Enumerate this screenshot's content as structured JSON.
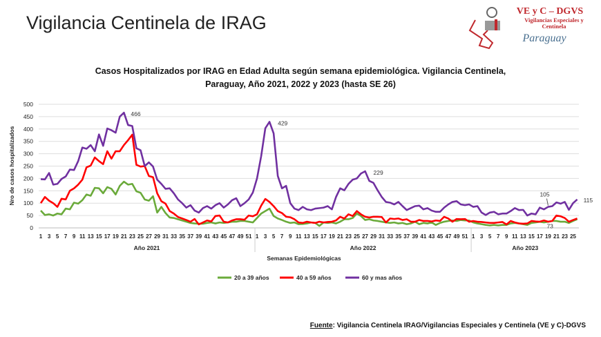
{
  "header": {
    "title": "Vigilancia Centinela de IRAG",
    "logo_text": [
      "VE y C – DGVS",
      "Vigilancias Especiales y",
      "Centinela",
      "Paraguay"
    ]
  },
  "chart_data": {
    "type": "line",
    "title": "Casos Hospitalizados por IRAG en Edad Adulta según semana epidemiológica. Vigilancia Centinela,",
    "subtitle": "Paraguay, Año 2021, 2022 y 2023 (hasta SE 26)",
    "xlabel": "Semanas Epidemiológicas",
    "ylabel": "Nro de casos hospitalizados",
    "ylim": [
      0,
      500
    ],
    "yticks": [
      0,
      50,
      100,
      150,
      200,
      250,
      300,
      350,
      400,
      450,
      500
    ],
    "grid": true,
    "legend": "bottom",
    "groups": [
      {
        "label": "Año 2021",
        "weeks": 52
      },
      {
        "label": "Año 2022",
        "weeks": 52
      },
      {
        "label": "Año 2023",
        "weeks": 26
      }
    ],
    "series": [
      {
        "name": "20 a 39 años",
        "color": "#6aaa3a",
        "values": [
          70,
          52,
          55,
          50,
          58,
          55,
          78,
          75,
          102,
          98,
          112,
          135,
          130,
          162,
          160,
          140,
          165,
          158,
          135,
          170,
          187,
          175,
          178,
          148,
          142,
          115,
          110,
          128,
          62,
          85,
          60,
          42,
          40,
          35,
          30,
          25,
          20,
          18,
          17,
          17,
          20,
          22,
          18,
          22,
          20,
          22,
          25,
          25,
          28,
          28,
          25,
          22,
          40,
          58,
          68,
          78,
          48,
          38,
          32,
          25,
          20,
          22,
          15,
          16,
          18,
          22,
          20,
          8,
          22,
          20,
          22,
          18,
          25,
          35,
          35,
          40,
          58,
          48,
          32,
          35,
          30,
          28,
          25,
          22,
          20,
          22,
          18,
          20,
          15,
          18,
          25,
          15,
          20,
          18,
          22,
          12,
          20,
          25,
          28,
          30,
          28,
          32,
          30,
          30,
          22,
          18,
          15,
          12,
          10,
          12,
          10,
          12,
          12,
          18,
          20,
          18,
          15,
          12,
          20,
          22,
          25,
          22,
          25,
          28,
          28,
          25,
          25,
          20,
          28,
          35
        ]
      },
      {
        "name": "40 a 59 años",
        "color": "#ff0000",
        "values": [
          100,
          125,
          110,
          100,
          85,
          118,
          115,
          150,
          160,
          175,
          195,
          245,
          252,
          285,
          270,
          258,
          310,
          280,
          310,
          310,
          335,
          355,
          377,
          255,
          248,
          250,
          210,
          205,
          140,
          108,
          98,
          68,
          58,
          44,
          38,
          32,
          25,
          36,
          14,
          22,
          30,
          26,
          48,
          50,
          25,
          22,
          30,
          35,
          35,
          33,
          50,
          47,
          55,
          90,
          117,
          105,
          88,
          68,
          60,
          45,
          43,
          35,
          22,
          20,
          25,
          22,
          20,
          25,
          22,
          24,
          25,
          30,
          45,
          38,
          55,
          48,
          68,
          55,
          45,
          42,
          45,
          45,
          44,
          22,
          38,
          36,
          38,
          32,
          35,
          25,
          25,
          32,
          28,
          28,
          26,
          30,
          28,
          45,
          38,
          25,
          36,
          35,
          36,
          25,
          28,
          25,
          24,
          22,
          20,
          20,
          22,
          24,
          14,
          28,
          22,
          18,
          17,
          18,
          28,
          26,
          25,
          30,
          25,
          28,
          50,
          47,
          40,
          25,
          32,
          38
        ]
      },
      {
        "name": "60 y mas años",
        "color": "#7030a0",
        "values": [
          197,
          196,
          222,
          175,
          178,
          198,
          208,
          236,
          234,
          270,
          325,
          320,
          335,
          310,
          378,
          332,
          402,
          395,
          385,
          450,
          466,
          416,
          412,
          322,
          314,
          250,
          265,
          248,
          195,
          178,
          158,
          160,
          140,
          115,
          100,
          82,
          92,
          70,
          62,
          80,
          88,
          78,
          92,
          100,
          82,
          95,
          112,
          120,
          88,
          100,
          115,
          143,
          200,
          290,
          403,
          429,
          382,
          210,
          160,
          170,
          100,
          78,
          72,
          85,
          75,
          72,
          78,
          80,
          82,
          88,
          75,
          125,
          160,
          152,
          178,
          195,
          200,
          220,
          229,
          190,
          182,
          152,
          125,
          105,
          102,
          95,
          105,
          88,
          72,
          80,
          88,
          90,
          75,
          80,
          70,
          65,
          65,
          82,
          95,
          105,
          108,
          95,
          92,
          95,
          85,
          88,
          62,
          52,
          62,
          65,
          55,
          58,
          58,
          68,
          80,
          72,
          73,
          50,
          58,
          55,
          82,
          75,
          85,
          88,
          103,
          98,
          105,
          73,
          100,
          115
        ]
      }
    ],
    "annotations": [
      "466",
      "429",
      "229",
      "105",
      "73",
      "115"
    ]
  },
  "source": {
    "label": "Fuente",
    "text": ": Vigilancia  Centinela IRAG/Vigilancias Especiales y Centinela (VE y C)-DGVS"
  }
}
